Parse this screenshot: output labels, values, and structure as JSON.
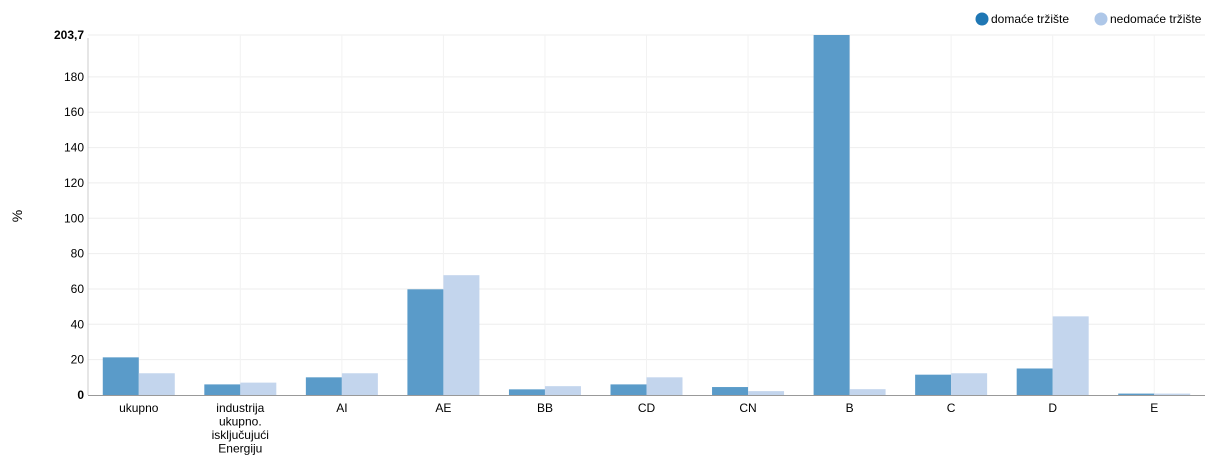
{
  "chart_data": {
    "type": "bar",
    "categories": [
      [
        "ukupno"
      ],
      [
        "industrija",
        "ukupno.",
        "isključujući",
        "Energiju"
      ],
      [
        "AI"
      ],
      [
        "AE"
      ],
      [
        "BB"
      ],
      [
        "CD"
      ],
      [
        "CN"
      ],
      [
        "B"
      ],
      [
        "C"
      ],
      [
        "D"
      ],
      [
        "E"
      ]
    ],
    "series": [
      {
        "name": "domaće tržište",
        "color": "#5a9bc9",
        "legend_color": "#1f77b4",
        "values": [
          21.3,
          6.0,
          10.0,
          59.8,
          3.2,
          6.0,
          4.5,
          203.7,
          11.5,
          15.0,
          0.8
        ]
      },
      {
        "name": "nedomaće tržište",
        "color": "#c3d5ed",
        "legend_color": "#aec7e8",
        "values": [
          12.3,
          7.0,
          12.3,
          67.8,
          5.0,
          10.0,
          2.2,
          3.3,
          12.3,
          44.5,
          0.8
        ]
      }
    ],
    "ylabel": "%",
    "ylim": [
      0,
      203.7
    ],
    "yticks": [
      0,
      20,
      40,
      60,
      80,
      100,
      120,
      140,
      160,
      180
    ],
    "ymax_label": "203,7",
    "grid": true,
    "legend": "top-right"
  }
}
